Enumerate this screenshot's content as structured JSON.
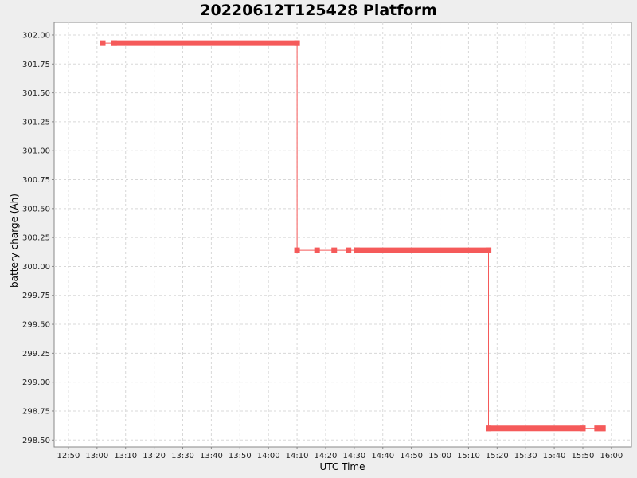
{
  "chart_data": {
    "type": "line",
    "title": "20220612T125428 Platform",
    "xlabel": "UTC Time",
    "ylabel": "battery charge (Ah)",
    "x_ticks": [
      "12:50",
      "13:00",
      "13:10",
      "13:20",
      "13:30",
      "13:40",
      "13:50",
      "14:00",
      "14:10",
      "14:20",
      "14:30",
      "14:40",
      "14:50",
      "15:00",
      "15:10",
      "15:20",
      "15:30",
      "15:40",
      "15:50",
      "16:00"
    ],
    "y_ticks": [
      "298.50",
      "298.75",
      "299.00",
      "299.25",
      "299.50",
      "299.75",
      "300.00",
      "300.25",
      "300.50",
      "300.75",
      "301.00",
      "301.25",
      "301.50",
      "301.75",
      "302.00"
    ],
    "xlim": [
      "12:45",
      "16:07"
    ],
    "ylim": [
      298.44,
      302.11
    ],
    "grid": true,
    "series": [
      {
        "color": "#f55a5a",
        "points": [
          {
            "x": "13:02",
            "y": 301.93
          },
          {
            "x": "13:06",
            "y": 301.93
          },
          {
            "x": "14:10",
            "y": 301.93
          },
          {
            "x": "14:10",
            "y": 300.14
          },
          {
            "x": "14:17",
            "y": 300.14
          },
          {
            "x": "14:23",
            "y": 300.14
          },
          {
            "x": "14:28",
            "y": 300.14
          },
          {
            "x": "14:31",
            "y": 300.14
          },
          {
            "x": "15:17",
            "y": 300.14
          },
          {
            "x": "15:17",
            "y": 298.6
          },
          {
            "x": "15:50",
            "y": 298.6
          },
          {
            "x": "15:55",
            "y": 298.6
          },
          {
            "x": "15:57",
            "y": 298.6
          }
        ],
        "dense_runs": [
          {
            "from": "13:06",
            "to": "14:10",
            "y": 301.93
          },
          {
            "from": "14:31",
            "to": "15:17",
            "y": 300.14
          },
          {
            "from": "15:17",
            "to": "15:50",
            "y": 298.6
          },
          {
            "from": "15:55",
            "to": "15:57",
            "y": 298.6
          }
        ]
      }
    ]
  }
}
